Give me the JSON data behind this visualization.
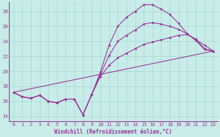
{
  "xlabel": "Windchill (Refroidissement éolien,°C)",
  "background_color": "#c8ece8",
  "grid_color": "#a8d8d4",
  "line_color": "#993399",
  "xlim_min": -0.5,
  "xlim_max": 23.5,
  "ylim_min": 13.3,
  "ylim_max": 29.2,
  "xticks": [
    0,
    1,
    2,
    3,
    4,
    5,
    6,
    7,
    8,
    9,
    10,
    11,
    12,
    13,
    14,
    15,
    16,
    17,
    18,
    19,
    20,
    21,
    22,
    23
  ],
  "yticks": [
    14,
    16,
    18,
    20,
    22,
    24,
    26,
    28
  ],
  "line1_x": [
    0,
    1,
    2,
    3,
    4,
    5,
    6,
    7,
    8,
    9,
    10,
    11,
    12,
    13,
    14,
    15,
    16,
    17,
    18,
    19,
    20,
    21,
    22,
    23
  ],
  "line1_y": [
    17.2,
    16.6,
    16.4,
    16.8,
    16.0,
    15.8,
    16.3,
    16.3,
    14.2,
    16.9,
    19.9,
    23.5,
    26.0,
    27.2,
    28.0,
    28.9,
    28.9,
    28.3,
    27.6,
    26.4,
    25.0,
    24.1,
    22.9,
    22.7
  ],
  "line2_x": [
    0,
    23
  ],
  "line2_y": [
    17.2,
    22.7
  ],
  "line3_x": [
    0,
    1,
    2,
    3,
    4,
    5,
    6,
    7,
    8,
    9,
    10,
    11,
    12,
    13,
    14,
    15,
    16,
    17,
    18,
    19,
    20,
    21,
    22,
    23
  ],
  "line3_y": [
    17.2,
    16.6,
    16.4,
    16.8,
    16.0,
    15.8,
    16.3,
    16.3,
    14.2,
    16.9,
    19.3,
    20.8,
    21.8,
    22.4,
    23.0,
    23.6,
    23.9,
    24.2,
    24.5,
    24.8,
    24.9,
    24.3,
    23.0,
    22.7
  ],
  "line4_x": [
    0,
    1,
    2,
    3,
    4,
    5,
    6,
    7,
    8,
    9,
    10,
    11,
    12,
    13,
    14,
    15,
    16,
    17,
    18,
    19,
    20,
    21,
    22,
    23
  ],
  "line4_y": [
    17.2,
    16.6,
    16.4,
    16.8,
    16.0,
    15.8,
    16.3,
    16.3,
    14.2,
    16.9,
    19.6,
    22.1,
    24.0,
    24.8,
    25.5,
    26.3,
    26.5,
    26.3,
    26.0,
    25.6,
    25.0,
    24.2,
    23.5,
    22.7
  ]
}
